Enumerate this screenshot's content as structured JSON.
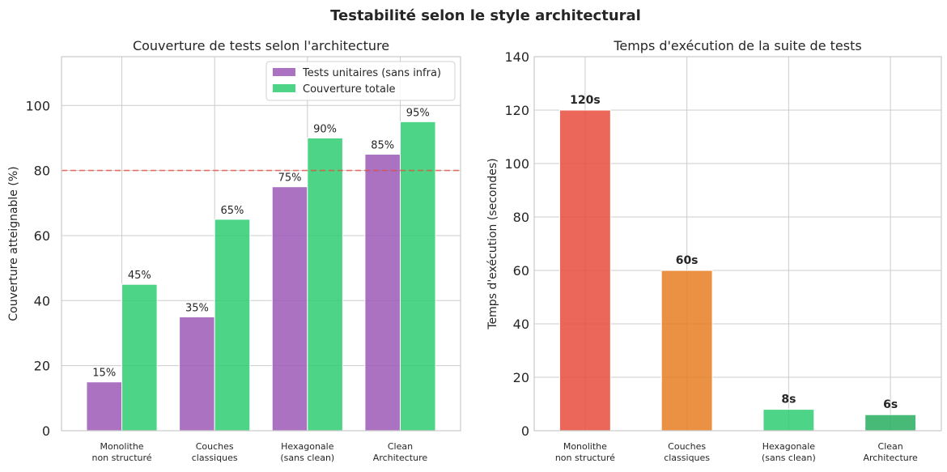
{
  "suptitle": "Testabilité selon le style architectural",
  "colors": {
    "unit": "#9b59b6",
    "total": "#2ecc71",
    "threshold": "#e74c3c",
    "monolithe": "#e74c3c",
    "couches": "#e67e22",
    "hexagonale": "#2ecc71",
    "clean": "#27ae60"
  },
  "chart_data": [
    {
      "type": "bar",
      "title": "Couverture de tests selon l'architecture",
      "ylabel": "Couverture atteignable (%)",
      "categories": [
        [
          "Monolithe",
          "non structuré"
        ],
        [
          "Couches",
          "classiques"
        ],
        [
          "Hexagonale",
          "(sans clean)"
        ],
        [
          "Clean",
          "Architecture"
        ]
      ],
      "series": [
        {
          "name": "Tests unitaires (sans infra)",
          "values": [
            15,
            35,
            75,
            85
          ],
          "labels": [
            "15%",
            "35%",
            "75%",
            "85%"
          ]
        },
        {
          "name": "Couverture totale",
          "values": [
            45,
            65,
            90,
            95
          ],
          "labels": [
            "45%",
            "65%",
            "90%",
            "95%"
          ]
        }
      ],
      "threshold": 80,
      "ylim": [
        0,
        115
      ],
      "yticks": [
        0,
        20,
        40,
        60,
        80,
        100
      ],
      "legend": "top-right",
      "grid": true
    },
    {
      "type": "bar",
      "title": "Temps d'exécution de la suite de tests",
      "ylabel": "Temps d'exécution (secondes)",
      "categories": [
        [
          "Monolithe",
          "non structuré"
        ],
        [
          "Couches",
          "classiques"
        ],
        [
          "Hexagonale",
          "(sans clean)"
        ],
        [
          "Clean",
          "Architecture"
        ]
      ],
      "values": [
        120,
        60,
        8,
        6
      ],
      "labels": [
        "120s",
        "60s",
        "8s",
        "6s"
      ],
      "ylim": [
        0,
        140
      ],
      "yticks": [
        0,
        20,
        40,
        60,
        80,
        100,
        120,
        140
      ],
      "grid": true
    }
  ]
}
